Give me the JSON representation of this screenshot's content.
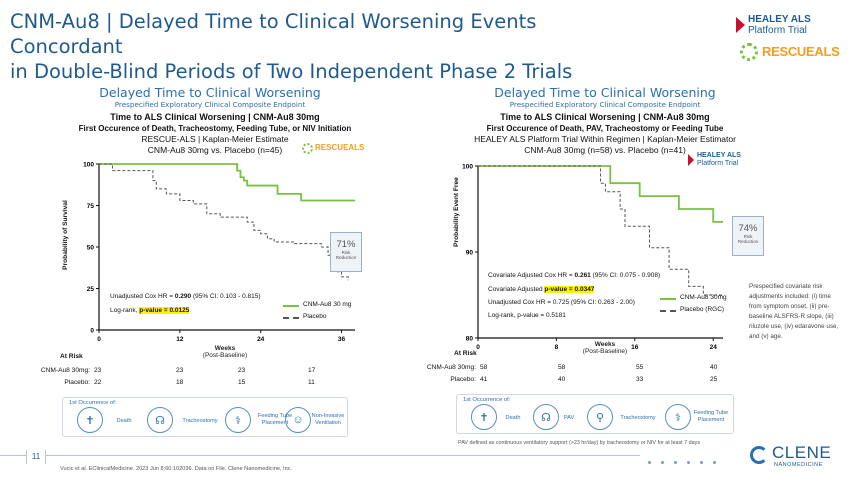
{
  "slide": {
    "title_line1": "CNM-Au8 | Delayed Time to Clinical Worsening Events Concordant",
    "title_line2": "in Double-Blind Periods of Two Independent Phase 2 Trials",
    "page_number": "11",
    "citation": "Vucic et al. EClinicalMedicine. 2023 Jun 8;60:102036. Data on File, Clene Nanomedicine, Inc.",
    "healey_logo_line1": "HEALEY ALS",
    "healey_logo_line2": "Platform Trial",
    "rescue_logo": "RESCUEALS",
    "clene_logo": "CLENE",
    "clene_sub": "NANOMEDICINE",
    "pav_footnote": "PAV defined as continuous ventilatory support (>23 hr/day) by tracheostomy or NIV for at least 7 days",
    "covariate_note": "Prespecified covariate risk adjustments included: (i) time from symptom onset, (ii) pre-baseline ALSFRS-R slope, (iii) riluzole use, (iv) edaravone use, and (v) age."
  },
  "left_panel": {
    "heading": "Delayed Time to Clinical Worsening",
    "subheading": "Prespecified Exploratory Clinical Composite Endpoint",
    "chart_title": "Time to ALS Clinical Worsening | CNM-Au8 30mg",
    "chart_subtitle": "First Occurence of Death, Tracheostomy, Feeding Tube, or NIV Initiation",
    "chart_line3": "RESCUE-ALS | Kaplan-Meier Estimate",
    "chart_line4": "CNM-Au8 30mg vs. Placebo (n=45)",
    "reduction_pct": "71%",
    "reduction_label1": "Risk",
    "reduction_label2": "Reduction",
    "stat1_pre": "Unadjusted Cox HR = ",
    "stat1_val": "0.290",
    "stat1_post": " (95% CI: 0.103 - 0.815)",
    "stat2_pre": "Log-rank, ",
    "stat2_val": "p-value = 0.0125",
    "legend_active": "CNM-Au8 30 mg",
    "legend_placebo": "Placebo",
    "ylabel": "Probability of Survival",
    "xlabel1": "Weeks",
    "xlabel2": "(Post-Baseline)",
    "risk_header": "At Risk",
    "risk_rows": [
      {
        "label": "CNM-Au8 30mg:",
        "values": [
          "23",
          "23",
          "23",
          "17"
        ]
      },
      {
        "label": "Placebo:",
        "values": [
          "22",
          "18",
          "15",
          "11"
        ]
      }
    ],
    "occurrence_title": "1st Occurrence of:",
    "occurrence_items": [
      "Death",
      "Tracheostomy",
      "Feeding Tube Placement",
      "Non-Invasive Ventilation"
    ]
  },
  "right_panel": {
    "heading": "Delayed Time to Clinical Worsening",
    "subheading": "Prespecified Exploratory Clinical Composite Endpoint",
    "chart_title": "Time to ALS Clinical Worsening | CNM-Au8 30mg",
    "chart_subtitle": "First Occurence of Death, PAV, Tracheostomy or Feeding Tube",
    "chart_line3": "HEALEY ALS Platform Trial Within Regimen | Kaplan-Meier Estimator",
    "chart_line4": "CNM-Au8 30mg (n=58) vs. Placebo (n=41)",
    "reduction_pct": "74%",
    "reduction_label1": "Risk",
    "reduction_label2": "Reduction",
    "stat1_pre": "Covariate Adjusted Cox HR = ",
    "stat1_val": "0.261",
    "stat1_post": " (95% CI: 0.075 - 0.908)",
    "stat2_pre": "Covariate Adjusted ",
    "stat2_val": "p-value = 0.0347",
    "stat3": "Unadjusted Cox HR =  0.725 (95% CI: 0.263 - 2.00)",
    "stat4": "Log-rank, p-value = 0.5181",
    "legend_active": "CNM-Au8 30mg",
    "legend_placebo": "Placebo (RGC)",
    "ylabel": "Probability Event Free",
    "xlabel1": "Weeks",
    "xlabel2": "(Post-Baseline)",
    "risk_header": "At Risk",
    "risk_rows": [
      {
        "label": "CNM-Au8 30mg:",
        "values": [
          "58",
          "58",
          "55",
          "40"
        ]
      },
      {
        "label": "Placebo:",
        "values": [
          "41",
          "40",
          "33",
          "25"
        ]
      }
    ],
    "occurrence_title": "1st Occurrence of:",
    "occurrence_items": [
      "Death",
      "PAV",
      "Tracheostomy",
      "Feeding Tube Placement"
    ]
  },
  "chart_data": [
    {
      "type": "line",
      "title": "Time to ALS Clinical Worsening | CNM-Au8 30mg",
      "xlabel": "Weeks (Post-Baseline)",
      "ylabel": "Probability of Survival",
      "xlim": [
        0,
        38
      ],
      "ylim": [
        0,
        100
      ],
      "xticks": [
        0,
        12,
        24,
        36
      ],
      "yticks": [
        0,
        25,
        50,
        75,
        100
      ],
      "series": [
        {
          "name": "CNM-Au8 30 mg",
          "color": "#7ac143",
          "dashed": false,
          "x": [
            0,
            20,
            20.5,
            21,
            21.5,
            22,
            26,
            26.5,
            30,
            38
          ],
          "y": [
            100,
            100,
            96,
            92,
            90,
            87,
            87,
            82,
            78,
            78
          ]
        },
        {
          "name": "Placebo",
          "color": "#555555",
          "dashed": true,
          "x": [
            0,
            2,
            6,
            8,
            8.5,
            10,
            12,
            14,
            16,
            18,
            20,
            22,
            23,
            24,
            25,
            26,
            29,
            30.5,
            33,
            34,
            35,
            35.5,
            36,
            37
          ],
          "y": [
            100,
            96,
            96,
            90,
            85,
            82,
            78,
            76,
            70,
            68,
            68,
            65,
            60,
            58,
            55,
            53,
            52,
            52,
            50,
            45,
            40,
            35,
            32,
            30
          ]
        }
      ]
    },
    {
      "type": "line",
      "title": "Time to ALS Clinical Worsening | CNM-Au8 30mg",
      "xlabel": "Weeks (Post-Baseline)",
      "ylabel": "Probability Event Free",
      "xlim": [
        0,
        25
      ],
      "ylim": [
        80,
        100
      ],
      "xticks": [
        0,
        8,
        16,
        24
      ],
      "yticks": [
        80,
        90,
        100
      ],
      "series": [
        {
          "name": "CNM-Au8 30mg",
          "color": "#7ac143",
          "dashed": false,
          "x": [
            0,
            13,
            13.5,
            16,
            16.5,
            20,
            20.5,
            23.5,
            24,
            25
          ],
          "y": [
            100,
            100,
            98,
            98,
            96.5,
            96.5,
            95,
            95,
            93.5,
            93.5
          ]
        },
        {
          "name": "Placebo (RGC)",
          "color": "#555555",
          "dashed": true,
          "x": [
            0,
            12,
            12.5,
            13,
            14,
            14.5,
            15,
            17,
            17.5,
            19,
            19.5,
            21,
            21.5,
            23,
            25
          ],
          "y": [
            100,
            100,
            98,
            97,
            97,
            95,
            93,
            93,
            90.5,
            90.5,
            88,
            88,
            86,
            85,
            85
          ]
        }
      ]
    }
  ]
}
